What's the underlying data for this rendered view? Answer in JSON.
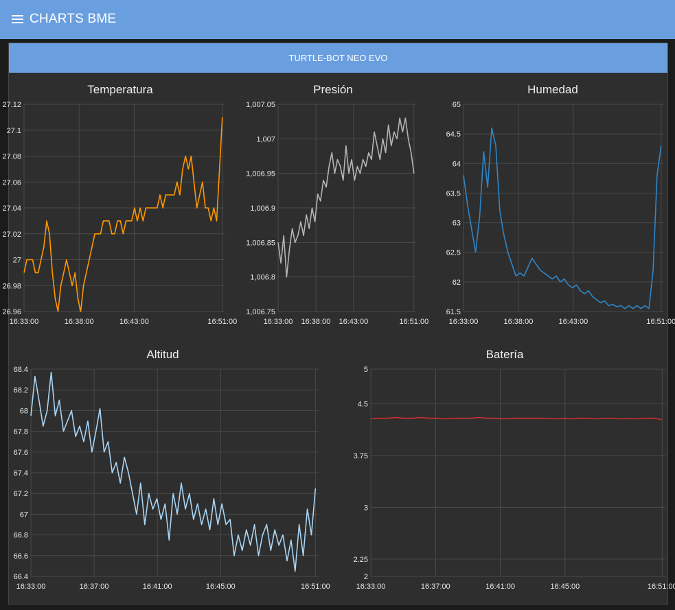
{
  "app": {
    "title": "CHARTS BME",
    "menu_icon": "hamburger-menu-icon"
  },
  "group": {
    "title": "TURTLE-BOT NEO EVO",
    "header_color": "#6a9fdf"
  },
  "chart_data": [
    {
      "id": "temperatura",
      "type": "line",
      "title": "Temperatura",
      "color": "#ff9800",
      "x_ticks": [
        "16:33:00",
        "16:38:00",
        "16:43:00",
        "16:51:00"
      ],
      "x_tick_pos": [
        0,
        5,
        10,
        18
      ],
      "x_range": [
        0,
        18.2
      ],
      "y_ticks": [
        "27.12",
        "27.1",
        "27.08",
        "27.06",
        "27.04",
        "27.02",
        "27",
        "26.98",
        "26.96"
      ],
      "y_range": [
        26.96,
        27.12
      ],
      "values": [
        26.99,
        27.0,
        27.0,
        27.0,
        26.99,
        26.99,
        27.0,
        27.01,
        27.03,
        27.02,
        26.99,
        26.97,
        26.96,
        26.98,
        26.99,
        27.0,
        26.99,
        26.98,
        26.99,
        26.97,
        26.96,
        26.98,
        26.99,
        27.0,
        27.01,
        27.02,
        27.02,
        27.02,
        27.03,
        27.03,
        27.03,
        27.02,
        27.02,
        27.03,
        27.03,
        27.02,
        27.03,
        27.03,
        27.03,
        27.04,
        27.03,
        27.04,
        27.03,
        27.04,
        27.04,
        27.04,
        27.04,
        27.04,
        27.05,
        27.04,
        27.05,
        27.05,
        27.05,
        27.05,
        27.06,
        27.05,
        27.07,
        27.08,
        27.07,
        27.08,
        27.06,
        27.04,
        27.05,
        27.06,
        27.04,
        27.04,
        27.03,
        27.04,
        27.03,
        27.07,
        27.11
      ]
    },
    {
      "id": "presion",
      "type": "line",
      "title": "Presión",
      "color": "#b5b5b5",
      "x_ticks": [
        "16:33:00",
        "16:38:00",
        "16:43:00",
        "16:51:00"
      ],
      "x_tick_pos": [
        0,
        5,
        10,
        18
      ],
      "x_range": [
        0,
        18.2
      ],
      "y_ticks": [
        "1,007.05",
        "1,007",
        "1,006.95",
        "1,006.9",
        "1,006.85",
        "1,006.8",
        "1,006.75"
      ],
      "y_range": [
        1006.75,
        1007.05
      ],
      "values": [
        1006.85,
        1006.82,
        1006.86,
        1006.8,
        1006.84,
        1006.87,
        1006.85,
        1006.86,
        1006.88,
        1006.86,
        1006.89,
        1006.87,
        1006.9,
        1006.88,
        1006.92,
        1006.91,
        1006.94,
        1006.93,
        1006.96,
        1006.98,
        1006.95,
        1006.97,
        1006.96,
        1006.94,
        1006.99,
        1006.95,
        1006.97,
        1006.94,
        1006.96,
        1006.95,
        1006.97,
        1006.96,
        1006.98,
        1006.97,
        1007.01,
        1006.99,
        1006.97,
        1007.0,
        1006.98,
        1007.02,
        1006.99,
        1007.01,
        1007.0,
        1007.03,
        1007.01,
        1007.03,
        1007.0,
        1006.98,
        1006.95
      ]
    },
    {
      "id": "humedad",
      "type": "line",
      "title": "Humedad",
      "color": "#2f86c8",
      "x_ticks": [
        "16:33:00",
        "16:38:00",
        "16:43:00",
        "16:51:00"
      ],
      "x_tick_pos": [
        0,
        5,
        10,
        18
      ],
      "x_range": [
        0,
        18.2
      ],
      "y_ticks": [
        "65",
        "64.5",
        "64",
        "63.5",
        "63",
        "62.5",
        "62",
        "61.5"
      ],
      "y_range": [
        61.5,
        65
      ],
      "values": [
        63.8,
        63.3,
        62.9,
        62.5,
        63.1,
        64.2,
        63.6,
        64.6,
        64.3,
        63.2,
        62.8,
        62.5,
        62.3,
        62.1,
        62.15,
        62.1,
        62.25,
        62.4,
        62.3,
        62.2,
        62.15,
        62.1,
        62.05,
        62.1,
        62.0,
        62.05,
        61.95,
        61.9,
        61.95,
        61.85,
        61.8,
        61.85,
        61.75,
        61.7,
        61.65,
        61.68,
        61.6,
        61.62,
        61.58,
        61.6,
        61.55,
        61.6,
        61.55,
        61.6,
        61.55,
        61.6,
        61.55,
        62.2,
        63.8,
        64.3
      ]
    },
    {
      "id": "altitud",
      "type": "line",
      "title": "Altitud",
      "color": "#a9d5f5",
      "x_ticks": [
        "16:33:00",
        "16:37:00",
        "16:41:00",
        "16:45:00",
        "16:51:00"
      ],
      "x_tick_pos": [
        0,
        4,
        8,
        12,
        18
      ],
      "x_range": [
        0,
        18.2
      ],
      "y_ticks": [
        "68.4",
        "68.2",
        "68",
        "67.8",
        "67.6",
        "67.4",
        "67.2",
        "67",
        "66.8",
        "66.6",
        "66.4"
      ],
      "y_range": [
        66.4,
        68.4
      ],
      "values": [
        67.95,
        68.33,
        68.1,
        67.85,
        68.0,
        68.37,
        67.95,
        68.1,
        67.8,
        67.9,
        68.0,
        67.75,
        67.85,
        67.7,
        67.9,
        67.6,
        67.8,
        68.02,
        67.6,
        67.7,
        67.4,
        67.5,
        67.3,
        67.55,
        67.4,
        67.2,
        67.0,
        67.3,
        66.9,
        67.2,
        67.05,
        67.15,
        66.95,
        67.1,
        66.75,
        67.2,
        67.0,
        67.3,
        67.05,
        67.2,
        66.95,
        67.1,
        66.9,
        67.05,
        66.85,
        67.15,
        66.9,
        67.1,
        66.9,
        66.95,
        66.6,
        66.8,
        66.65,
        66.85,
        66.7,
        66.9,
        66.6,
        66.8,
        66.9,
        66.65,
        66.85,
        66.7,
        66.8,
        66.55,
        66.75,
        66.45,
        66.9,
        66.6,
        67.05,
        66.8,
        67.25
      ]
    },
    {
      "id": "bateria",
      "type": "line",
      "title": "Batería",
      "color": "#d32f2f",
      "x_ticks": [
        "16:33:00",
        "16:37:00",
        "16:41:00",
        "16:45:00",
        "16:51:00"
      ],
      "x_tick_pos": [
        0,
        4,
        8,
        12,
        18
      ],
      "x_range": [
        0,
        18.2
      ],
      "y_ticks": [
        "5",
        "4.5",
        "3.75",
        "3",
        "2.25",
        "2"
      ],
      "y_tick_vals": [
        5,
        4.5,
        3.75,
        3,
        2.25,
        2
      ],
      "y_range": [
        2,
        5
      ],
      "values": [
        4.28,
        4.29,
        4.29,
        4.3,
        4.29,
        4.29,
        4.3,
        4.29,
        4.29,
        4.28,
        4.29,
        4.29,
        4.29,
        4.3,
        4.29,
        4.29,
        4.28,
        4.29,
        4.29,
        4.29,
        4.29,
        4.29,
        4.28,
        4.29,
        4.28,
        4.29,
        4.29,
        4.28,
        4.29,
        4.29,
        4.28,
        4.29,
        4.28,
        4.29,
        4.29,
        4.27
      ]
    }
  ]
}
